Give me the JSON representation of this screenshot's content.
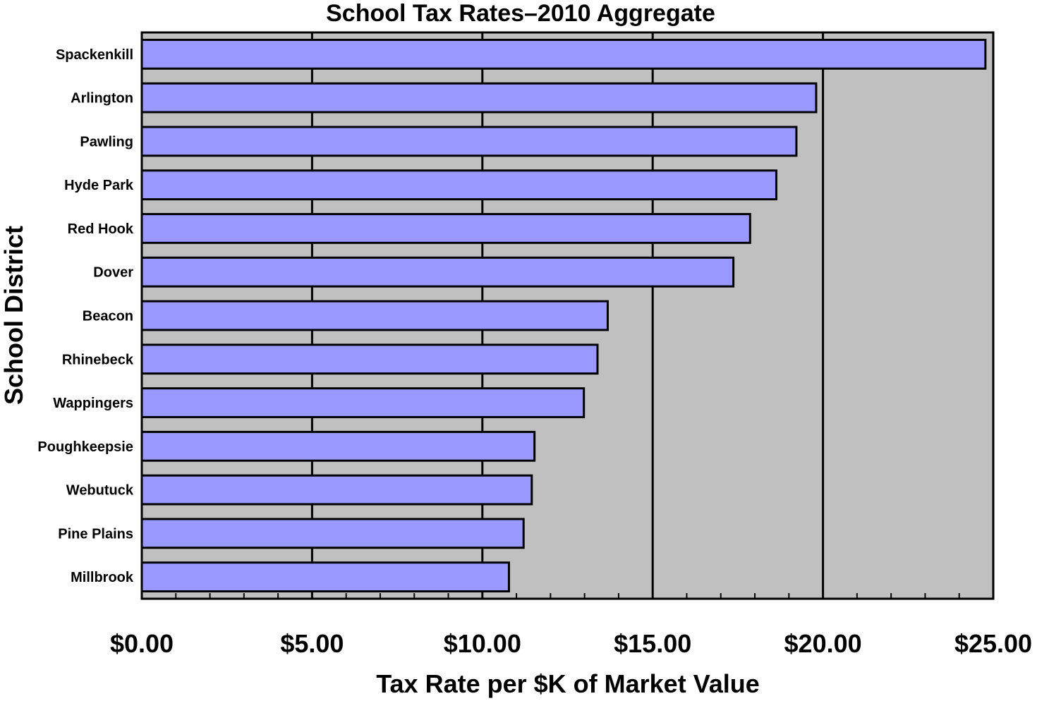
{
  "chart_data": {
    "type": "bar",
    "orientation": "horizontal",
    "title": "School Tax Rates–2010 Aggregate",
    "xlabel": "Tax Rate per $K of Market Value",
    "ylabel": "School District",
    "xlim": [
      0,
      25
    ],
    "x_ticks": [
      0,
      5,
      10,
      15,
      20,
      25
    ],
    "x_tick_labels": [
      "$0.00",
      "$5.00",
      "$10.00",
      "$15.00",
      "$20.00",
      "$25.00"
    ],
    "grid": "vertical",
    "categories": [
      "Spackenkill",
      "Arlington",
      "Pawling",
      "Hyde Park",
      "Red Hook",
      "Dover",
      "Beacon",
      "Rhinebeck",
      "Wappingers",
      "Poughkeepsie",
      "Webutuck",
      "Pine Plains",
      "Millbrook"
    ],
    "values": [
      24.77,
      19.8,
      19.22,
      18.63,
      17.86,
      17.37,
      13.68,
      13.38,
      12.98,
      11.53,
      11.45,
      11.21,
      10.78
    ],
    "colors": {
      "bar": "#9999ff",
      "plot_background": "#c0c0c0",
      "outline": "#000000"
    }
  }
}
